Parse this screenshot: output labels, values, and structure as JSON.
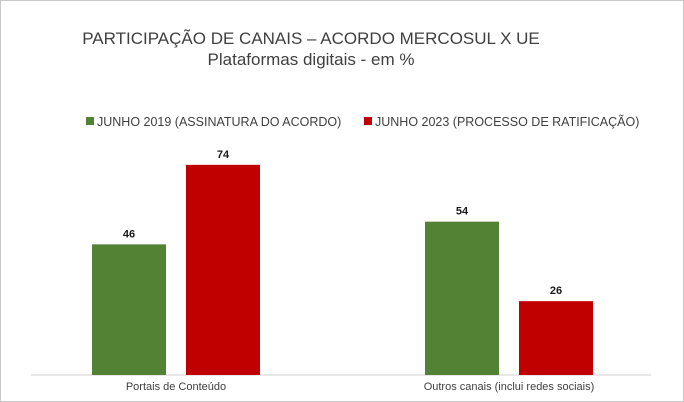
{
  "chart_data": {
    "type": "bar",
    "title": "PARTICIPAÇÃO DE CANAIS – ACORDO MERCOSUL X UE",
    "subtitle": "Plataformas digitais - em %",
    "xlabel": "",
    "ylabel": "",
    "ylim": [
      0,
      80
    ],
    "grid": false,
    "legend_position": "top",
    "categories": [
      "Portais de Conteúdo",
      "Outros canais (inclui redes sociais)"
    ],
    "series": [
      {
        "name": "JUNHO 2019 (ASSINATURA DO ACORDO)",
        "color": "#548235",
        "values": [
          46,
          54
        ]
      },
      {
        "name": "JUNHO 2023 (PROCESSO DE RATIFICAÇÃO)",
        "color": "#c00000",
        "values": [
          74,
          26
        ]
      }
    ],
    "data_labels": true
  }
}
